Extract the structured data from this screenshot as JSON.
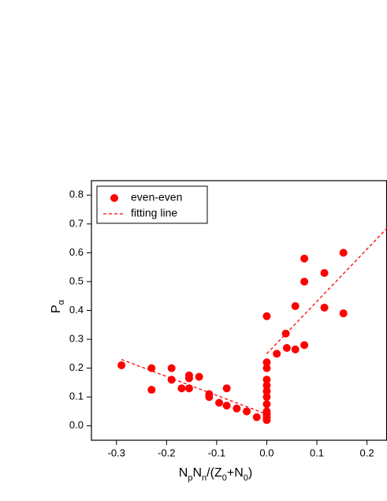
{
  "chart_data": {
    "type": "scatter",
    "x_label": [
      "N",
      [
        "p"
      ],
      "N",
      [
        "n"
      ],
      "/(Z",
      [
        "0"
      ],
      "+N",
      [
        "0"
      ],
      ")"
    ],
    "y_label": [
      "P",
      [
        "α"
      ]
    ],
    "xlim": [
      -0.35,
      0.24
    ],
    "ylim": [
      -0.05,
      0.85
    ],
    "xticks": [
      -0.3,
      -0.2,
      -0.1,
      {
        "value": 0,
        "label": "0.0"
      },
      0.1,
      0.2
    ],
    "yticks": [
      {
        "value": 0,
        "label": "0.0"
      },
      0.1,
      0.2,
      0.3,
      0.4,
      0.5,
      0.6,
      0.7,
      0.8
    ],
    "legend": "upper left",
    "series": [
      {
        "name": "even-even",
        "color": "#ff0000",
        "marker": "circle",
        "x": [
          -0.29,
          -0.23,
          -0.23,
          -0.19,
          -0.19,
          -0.17,
          -0.155,
          -0.155,
          -0.155,
          -0.135,
          -0.115,
          -0.115,
          -0.095,
          -0.08,
          -0.08,
          -0.06,
          -0.04,
          -0.02,
          0,
          0,
          0,
          0,
          0,
          0,
          0,
          0,
          0,
          0,
          0,
          0,
          0.02,
          0.038,
          0.04,
          0.057,
          0.057,
          0.075,
          0.075,
          0.075,
          0.115,
          0.115,
          0.153,
          0.153
        ],
        "values": [
          0.21,
          0.2,
          0.125,
          0.2,
          0.16,
          0.13,
          0.175,
          0.165,
          0.13,
          0.17,
          0.11,
          0.1,
          0.08,
          0.13,
          0.07,
          0.06,
          0.05,
          0.03,
          0.38,
          0.22,
          0.2,
          0.16,
          0.14,
          0.12,
          0.1,
          0.075,
          0.05,
          0.04,
          0.03,
          0.02,
          0.25,
          0.32,
          0.27,
          0.415,
          0.265,
          0.58,
          0.5,
          0.28,
          0.53,
          0.41,
          0.6,
          0.39
        ]
      },
      {
        "name": "fitting line",
        "color": "#ff0000",
        "marker": "dashed-line",
        "x": [
          -0.29,
          0,
          null,
          0,
          0.24
        ],
        "values": [
          0.23,
          0.04,
          null,
          0.25,
          0.685
        ]
      }
    ]
  }
}
